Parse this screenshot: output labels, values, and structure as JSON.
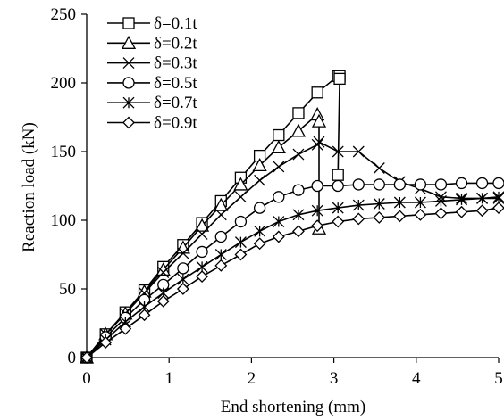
{
  "chart_data": {
    "type": "line",
    "title": "",
    "xlabel": "End shortening (mm)",
    "ylabel": "Reaction load (kN)",
    "xlim": [
      0,
      5
    ],
    "ylim": [
      0,
      250
    ],
    "xticks": [
      "0",
      "1",
      "2",
      "3",
      "4",
      "5"
    ],
    "yticks": [
      "0",
      "50",
      "100",
      "150",
      "200",
      "250"
    ],
    "grid": false,
    "legend_position": "top-left",
    "series": [
      {
        "name": "δ=0.1t",
        "marker": "square",
        "points": [
          [
            0,
            0
          ],
          [
            0.23,
            17
          ],
          [
            0.47,
            33
          ],
          [
            0.7,
            49
          ],
          [
            0.93,
            66
          ],
          [
            1.17,
            82
          ],
          [
            1.4,
            98
          ],
          [
            1.63,
            114
          ],
          [
            1.87,
            131
          ],
          [
            2.1,
            147
          ],
          [
            2.33,
            162
          ],
          [
            2.57,
            178
          ],
          [
            2.8,
            193
          ],
          [
            3.05,
            205
          ],
          [
            3.07,
            205
          ],
          [
            3.07,
            203
          ],
          [
            3.05,
            133
          ]
        ]
      },
      {
        "name": "δ=0.2t",
        "marker": "triangle",
        "points": [
          [
            0,
            0
          ],
          [
            0.23,
            17
          ],
          [
            0.47,
            32
          ],
          [
            0.7,
            48
          ],
          [
            0.93,
            64
          ],
          [
            1.17,
            80
          ],
          [
            1.4,
            96
          ],
          [
            1.63,
            111
          ],
          [
            1.87,
            126
          ],
          [
            2.1,
            140
          ],
          [
            2.33,
            153
          ],
          [
            2.57,
            165
          ],
          [
            2.8,
            177
          ],
          [
            2.82,
            172
          ],
          [
            2.82,
            94
          ]
        ]
      },
      {
        "name": "δ=0.3t",
        "marker": "x",
        "points": [
          [
            0,
            0
          ],
          [
            0.23,
            17
          ],
          [
            0.47,
            32
          ],
          [
            0.7,
            47
          ],
          [
            0.93,
            62
          ],
          [
            1.17,
            76
          ],
          [
            1.4,
            90
          ],
          [
            1.63,
            104
          ],
          [
            1.87,
            117
          ],
          [
            2.1,
            129
          ],
          [
            2.33,
            139
          ],
          [
            2.57,
            148
          ],
          [
            2.8,
            155
          ],
          [
            2.82,
            157
          ],
          [
            3.05,
            150
          ],
          [
            3.3,
            150
          ],
          [
            3.55,
            138
          ],
          [
            3.8,
            128
          ],
          [
            4.05,
            123
          ],
          [
            4.3,
            117
          ],
          [
            4.55,
            116
          ],
          [
            4.8,
            116
          ],
          [
            5.0,
            116
          ]
        ]
      },
      {
        "name": "δ=0.5t",
        "marker": "circle",
        "points": [
          [
            0,
            0
          ],
          [
            0.23,
            15
          ],
          [
            0.47,
            29
          ],
          [
            0.7,
            42
          ],
          [
            0.93,
            53
          ],
          [
            1.17,
            65
          ],
          [
            1.4,
            77
          ],
          [
            1.63,
            88
          ],
          [
            1.87,
            99
          ],
          [
            2.1,
            109
          ],
          [
            2.33,
            117
          ],
          [
            2.57,
            122
          ],
          [
            2.8,
            125
          ],
          [
            3.05,
            125
          ],
          [
            3.3,
            126
          ],
          [
            3.55,
            126
          ],
          [
            3.8,
            126
          ],
          [
            4.05,
            126
          ],
          [
            4.3,
            126
          ],
          [
            4.55,
            127
          ],
          [
            4.8,
            127
          ],
          [
            5.0,
            127
          ]
        ]
      },
      {
        "name": "δ=0.7t",
        "marker": "asterisk",
        "points": [
          [
            0,
            0
          ],
          [
            0.23,
            13
          ],
          [
            0.47,
            26
          ],
          [
            0.7,
            37
          ],
          [
            0.93,
            47
          ],
          [
            1.17,
            57
          ],
          [
            1.4,
            66
          ],
          [
            1.63,
            75
          ],
          [
            1.87,
            84
          ],
          [
            2.1,
            92
          ],
          [
            2.33,
            99
          ],
          [
            2.57,
            104
          ],
          [
            2.8,
            107
          ],
          [
            3.05,
            109
          ],
          [
            3.3,
            111
          ],
          [
            3.55,
            112
          ],
          [
            3.8,
            113
          ],
          [
            4.05,
            113
          ],
          [
            4.3,
            114
          ],
          [
            4.55,
            115
          ],
          [
            4.8,
            116
          ],
          [
            5.0,
            117
          ]
        ]
      },
      {
        "name": "δ=0.9t",
        "marker": "diamond",
        "points": [
          [
            0,
            0
          ],
          [
            0.23,
            11
          ],
          [
            0.47,
            21
          ],
          [
            0.7,
            31
          ],
          [
            0.93,
            41
          ],
          [
            1.17,
            50
          ],
          [
            1.4,
            59
          ],
          [
            1.63,
            67
          ],
          [
            1.87,
            75
          ],
          [
            2.1,
            83
          ],
          [
            2.33,
            88
          ],
          [
            2.57,
            92
          ],
          [
            2.8,
            96
          ],
          [
            3.05,
            99
          ],
          [
            3.3,
            101
          ],
          [
            3.55,
            102
          ],
          [
            3.8,
            103
          ],
          [
            4.05,
            104
          ],
          [
            4.3,
            105
          ],
          [
            4.55,
            106
          ],
          [
            4.8,
            107
          ],
          [
            5.0,
            109
          ]
        ]
      }
    ]
  }
}
